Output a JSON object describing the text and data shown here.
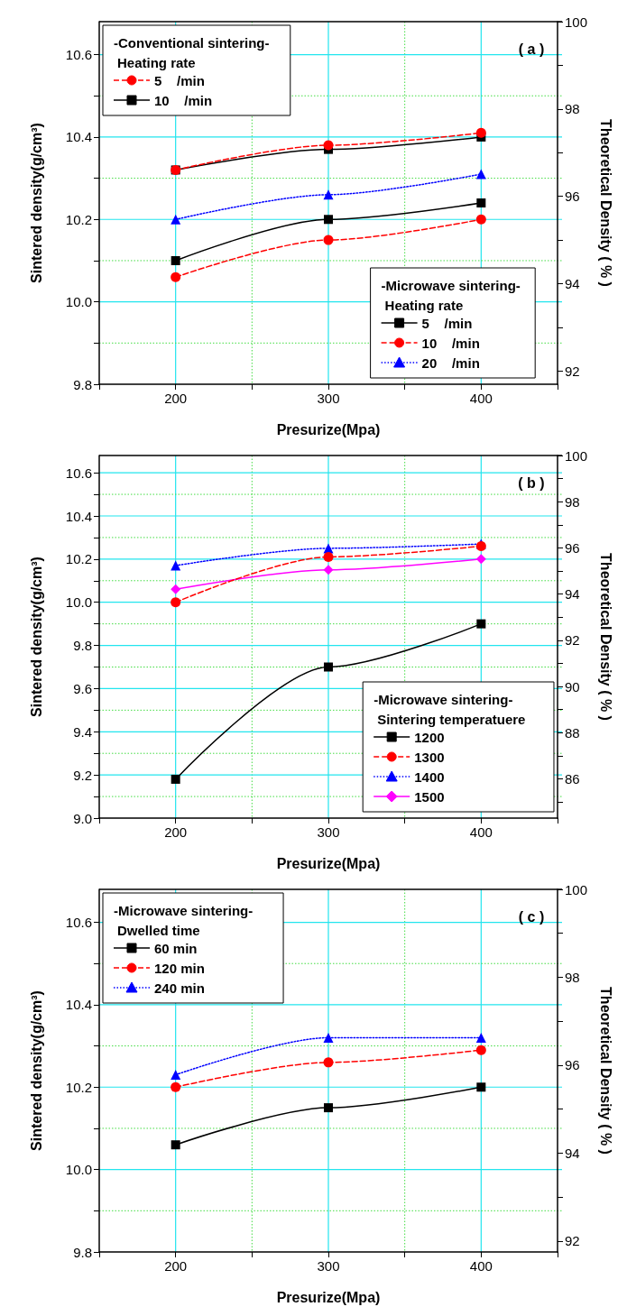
{
  "chart_data": [
    {
      "type": "line",
      "xlabel": "Presurize(Mpa)",
      "ylabel": "Sintered density(g/cm³)",
      "y2label": "Theoretical Density ( % )",
      "x": [
        200,
        300,
        400
      ],
      "xlim": [
        150,
        450
      ],
      "xticks": [
        {
          "value": 150,
          "label": null
        },
        200,
        {
          "value": 250,
          "label": null
        },
        300,
        {
          "value": 350,
          "label": null
        },
        400,
        {
          "value": 450,
          "label": null
        }
      ],
      "ylim": [
        9.8,
        10.68
      ],
      "yticks": [
        9.8,
        {
          "value": 9.9,
          "label": null
        },
        {
          "value": 10,
          "label": "10.0"
        },
        {
          "value": 10.1,
          "label": null
        },
        10.2,
        {
          "value": 10.3,
          "label": null
        },
        10.4,
        {
          "value": 10.5,
          "label": null
        },
        10.6
      ],
      "y2lim": [
        91.7,
        100
      ],
      "y2ticks": [
        92,
        {
          "value": 93,
          "label": null
        },
        94,
        {
          "value": 95,
          "label": null
        },
        96,
        {
          "value": 97,
          "label": null
        },
        98,
        {
          "value": 99,
          "label": null
        },
        100
      ],
      "grid": true,
      "legend": [
        "top left",
        "bottom right"
      ],
      "legend_title": [
        "-Conventional sintering-\nHeating rate",
        "-Microwave sintering-\nHeating rate"
      ],
      "annotations": [
        "( a )"
      ],
      "series": [
        {
          "name": "5    /min",
          "color": "#ff0000",
          "values": [
            10.32,
            10.38,
            10.41
          ],
          "marker": "circle",
          "line_style": "dashed"
        },
        {
          "name": "10    /min",
          "color": "#000000",
          "values": [
            10.32,
            10.37,
            10.4
          ],
          "marker": "square",
          "line_style": "solid"
        },
        {
          "name": "5    /min",
          "color": "#000000",
          "values": [
            10.1,
            10.2,
            10.24
          ],
          "marker": "square",
          "line_style": "solid"
        },
        {
          "name": "10    /min",
          "color": "#ff0000",
          "values": [
            10.06,
            10.15,
            10.2
          ],
          "marker": "circle",
          "line_style": "dashed"
        },
        {
          "name": "20    /min",
          "color": "#0000ff",
          "values": [
            10.2,
            10.26,
            10.31
          ],
          "marker": "triangle",
          "line_style": "dotted"
        }
      ]
    },
    {
      "type": "line",
      "xlabel": "Presurize(Mpa)",
      "ylabel": "Sintered density(g/cm³)",
      "y2label": "Theoretical Density ( % )",
      "x": [
        200,
        300,
        400
      ],
      "xlim": [
        150,
        450
      ],
      "xticks": [
        {
          "value": 150,
          "label": null
        },
        200,
        {
          "value": 250,
          "label": null
        },
        300,
        {
          "value": 350,
          "label": null
        },
        400,
        {
          "value": 450,
          "label": null
        }
      ],
      "ylim": [
        9.0,
        10.68
      ],
      "yticks": [
        {
          "value": 9,
          "label": "9.0"
        },
        {
          "value": 9.1,
          "label": null
        },
        9.2,
        {
          "value": 9.3,
          "label": null
        },
        9.4,
        {
          "value": 9.5,
          "label": null
        },
        9.6,
        {
          "value": 9.7,
          "label": null
        },
        9.8,
        {
          "value": 9.9,
          "label": null
        },
        {
          "value": 10,
          "label": "10.0"
        },
        {
          "value": 10.1,
          "label": null
        },
        10.2,
        {
          "value": 10.3,
          "label": null
        },
        10.4,
        {
          "value": 10.5,
          "label": null
        },
        10.6
      ],
      "y2lim": [
        84.3,
        100
      ],
      "y2ticks": [
        {
          "value": 85,
          "label": null
        },
        86,
        {
          "value": 87,
          "label": null
        },
        88,
        {
          "value": 89,
          "label": null
        },
        90,
        {
          "value": 91,
          "label": null
        },
        92,
        {
          "value": 93,
          "label": null
        },
        94,
        {
          "value": 95,
          "label": null
        },
        96,
        {
          "value": 97,
          "label": null
        },
        98,
        {
          "value": 99,
          "label": null
        },
        100
      ],
      "grid": true,
      "legend": "bottom right",
      "legend_title": "-Microwave sintering-\nSintering temperatuere",
      "annotations": [
        "( b )"
      ],
      "series": [
        {
          "name": "1200",
          "color": "#000000",
          "values": [
            9.18,
            9.7,
            9.9
          ],
          "marker": "square",
          "line_style": "solid"
        },
        {
          "name": "1300",
          "color": "#ff0000",
          "values": [
            10.0,
            10.21,
            10.26
          ],
          "marker": "circle",
          "line_style": "dashed"
        },
        {
          "name": "1400",
          "color": "#0000ff",
          "values": [
            10.17,
            10.25,
            10.27
          ],
          "marker": "triangle",
          "line_style": "dotted"
        },
        {
          "name": "1500",
          "color": "#ff00ff",
          "values": [
            10.06,
            10.15,
            10.2
          ],
          "marker": "diamond",
          "line_style": "solid"
        }
      ]
    },
    {
      "type": "line",
      "xlabel": "Presurize(Mpa)",
      "ylabel": "Sintered density(g/cm³)",
      "y2label": "Theoretical Density ( % )",
      "x": [
        200,
        300,
        400
      ],
      "xlim": [
        150,
        450
      ],
      "xticks": [
        {
          "value": 150,
          "label": null
        },
        200,
        {
          "value": 250,
          "label": null
        },
        300,
        {
          "value": 350,
          "label": null
        },
        400,
        {
          "value": 450,
          "label": null
        }
      ],
      "ylim": [
        9.8,
        10.68
      ],
      "yticks": [
        9.8,
        {
          "value": 9.9,
          "label": null
        },
        {
          "value": 10,
          "label": "10.0"
        },
        {
          "value": 10.1,
          "label": null
        },
        10.2,
        {
          "value": 10.3,
          "label": null
        },
        10.4,
        {
          "value": 10.5,
          "label": null
        },
        10.6
      ],
      "y2lim": [
        91.75,
        100
      ],
      "y2ticks": [
        92,
        {
          "value": 93,
          "label": null
        },
        94,
        {
          "value": 95,
          "label": null
        },
        96,
        {
          "value": 97,
          "label": null
        },
        98,
        {
          "value": 99,
          "label": null
        },
        100
      ],
      "grid": true,
      "legend": "top left",
      "legend_title": "-Microwave sintering-\nDwelled time",
      "annotations": [
        "( c )"
      ],
      "series": [
        {
          "name": "60 min",
          "color": "#000000",
          "values": [
            10.06,
            10.15,
            10.2
          ],
          "marker": "square",
          "line_style": "solid"
        },
        {
          "name": "120 min",
          "color": "#ff0000",
          "values": [
            10.2,
            10.26,
            10.29
          ],
          "marker": "circle",
          "line_style": "dashed"
        },
        {
          "name": "240 min",
          "color": "#0000ff",
          "values": [
            10.23,
            10.32,
            10.32
          ],
          "marker": "triangle",
          "line_style": "dotted"
        }
      ]
    }
  ]
}
